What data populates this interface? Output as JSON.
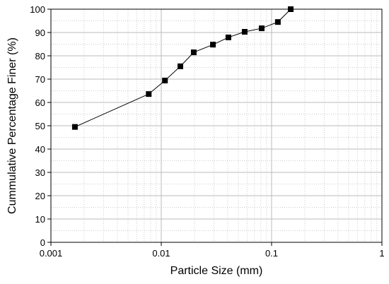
{
  "chart_data": {
    "type": "line",
    "xlabel": "Particle Size (mm)",
    "ylabel": "Cummulative Percentage Finer (%)",
    "x": [
      0.00165,
      0.0077,
      0.0108,
      0.0149,
      0.0197,
      0.0294,
      0.0406,
      0.057,
      0.0813,
      0.114,
      0.149
    ],
    "series": [
      {
        "color": "#000000",
        "values": [
          49.5,
          63.6,
          69.4,
          75.5,
          81.5,
          84.8,
          87.9,
          90.3,
          91.8,
          94.5,
          100
        ]
      }
    ],
    "xlim": [
      0.001,
      1
    ],
    "ylim": [
      0,
      100
    ],
    "xticks": [
      0.001,
      0.01,
      0.1,
      1
    ],
    "yticks": [
      0,
      10,
      20,
      30,
      40,
      50,
      60,
      70,
      80,
      90,
      100
    ],
    "xscale": "log",
    "grid": true,
    "marker": "square"
  }
}
